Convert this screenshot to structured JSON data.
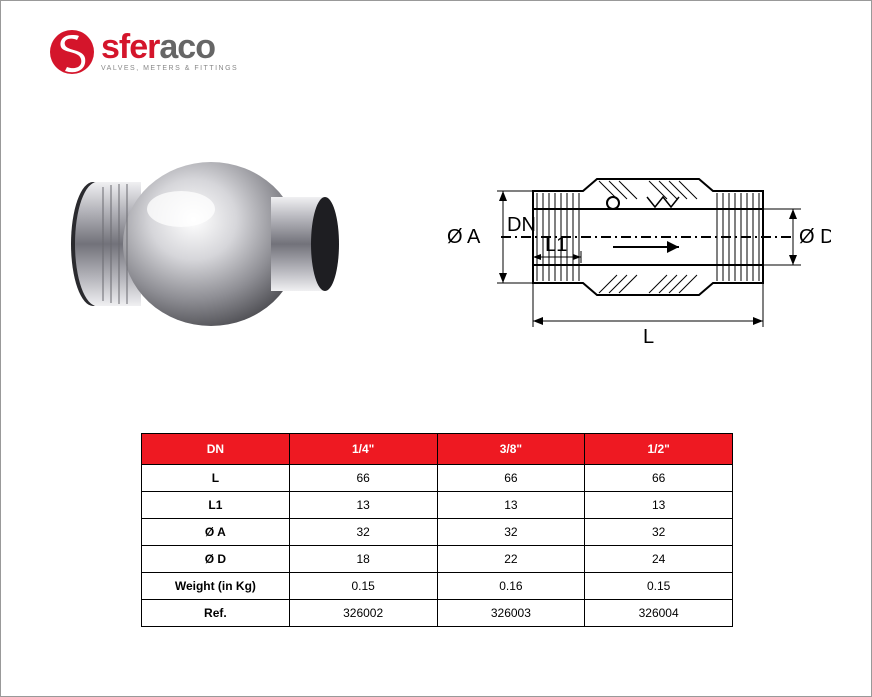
{
  "logo": {
    "word_left": "sfer",
    "word_right": "aco",
    "tagline": "VALVES, METERS & FITTINGS",
    "mark_color": "#d4152b",
    "mark_inner": "#ffffff"
  },
  "diagram": {
    "labels": {
      "oa": "Ø A",
      "dn": "DN",
      "l1": "L1",
      "od": "Ø D",
      "l": "L"
    },
    "stroke": "#000000",
    "hatch": "#000000"
  },
  "table": {
    "header_bg": "#ee1922",
    "header_fg": "#ffffff",
    "border": "#000000",
    "columns": [
      "DN",
      "1/4\"",
      "3/8\"",
      "1/2\""
    ],
    "rows": [
      {
        "label": "L",
        "values": [
          "66",
          "66",
          "66"
        ]
      },
      {
        "label": "L1",
        "values": [
          "13",
          "13",
          "13"
        ]
      },
      {
        "label": "Ø A",
        "values": [
          "32",
          "32",
          "32"
        ]
      },
      {
        "label": "Ø D",
        "values": [
          "18",
          "22",
          "24"
        ]
      },
      {
        "label": "Weight (in Kg)",
        "values": [
          "0.15",
          "0.16",
          "0.15"
        ]
      },
      {
        "label": "Ref.",
        "values": [
          "326002",
          "326003",
          "326004"
        ]
      }
    ]
  },
  "product": {
    "body_color": "#c8c8cc",
    "highlight": "#f6f6f8",
    "shadow": "#5a5a5e"
  }
}
